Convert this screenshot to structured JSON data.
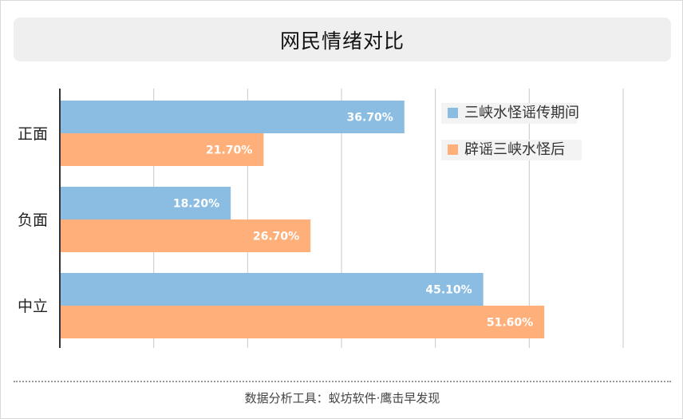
{
  "header": {
    "title": "网民情绪对比"
  },
  "footer": {
    "source": "数据分析工具：蚁坊软件·鹰击早发现"
  },
  "chart_data": {
    "type": "bar",
    "orientation": "horizontal",
    "title": "网民情绪对比",
    "categories": [
      "正面",
      "负面",
      "中立"
    ],
    "series": [
      {
        "name": "三峡水怪谣传期间",
        "values": [
          36.7,
          18.2,
          45.1
        ],
        "labels": [
          "36.70%",
          "18.20%",
          "45.10%"
        ],
        "color": "#8bbde3"
      },
      {
        "name": "辟谣三峡水怪后",
        "values": [
          21.7,
          26.7,
          51.6
        ],
        "labels": [
          "21.70%",
          "26.70%",
          "51.60%"
        ],
        "color": "#ffb07a"
      }
    ],
    "xlim": [
      0,
      60
    ],
    "grid": true,
    "legend": "top-right"
  }
}
